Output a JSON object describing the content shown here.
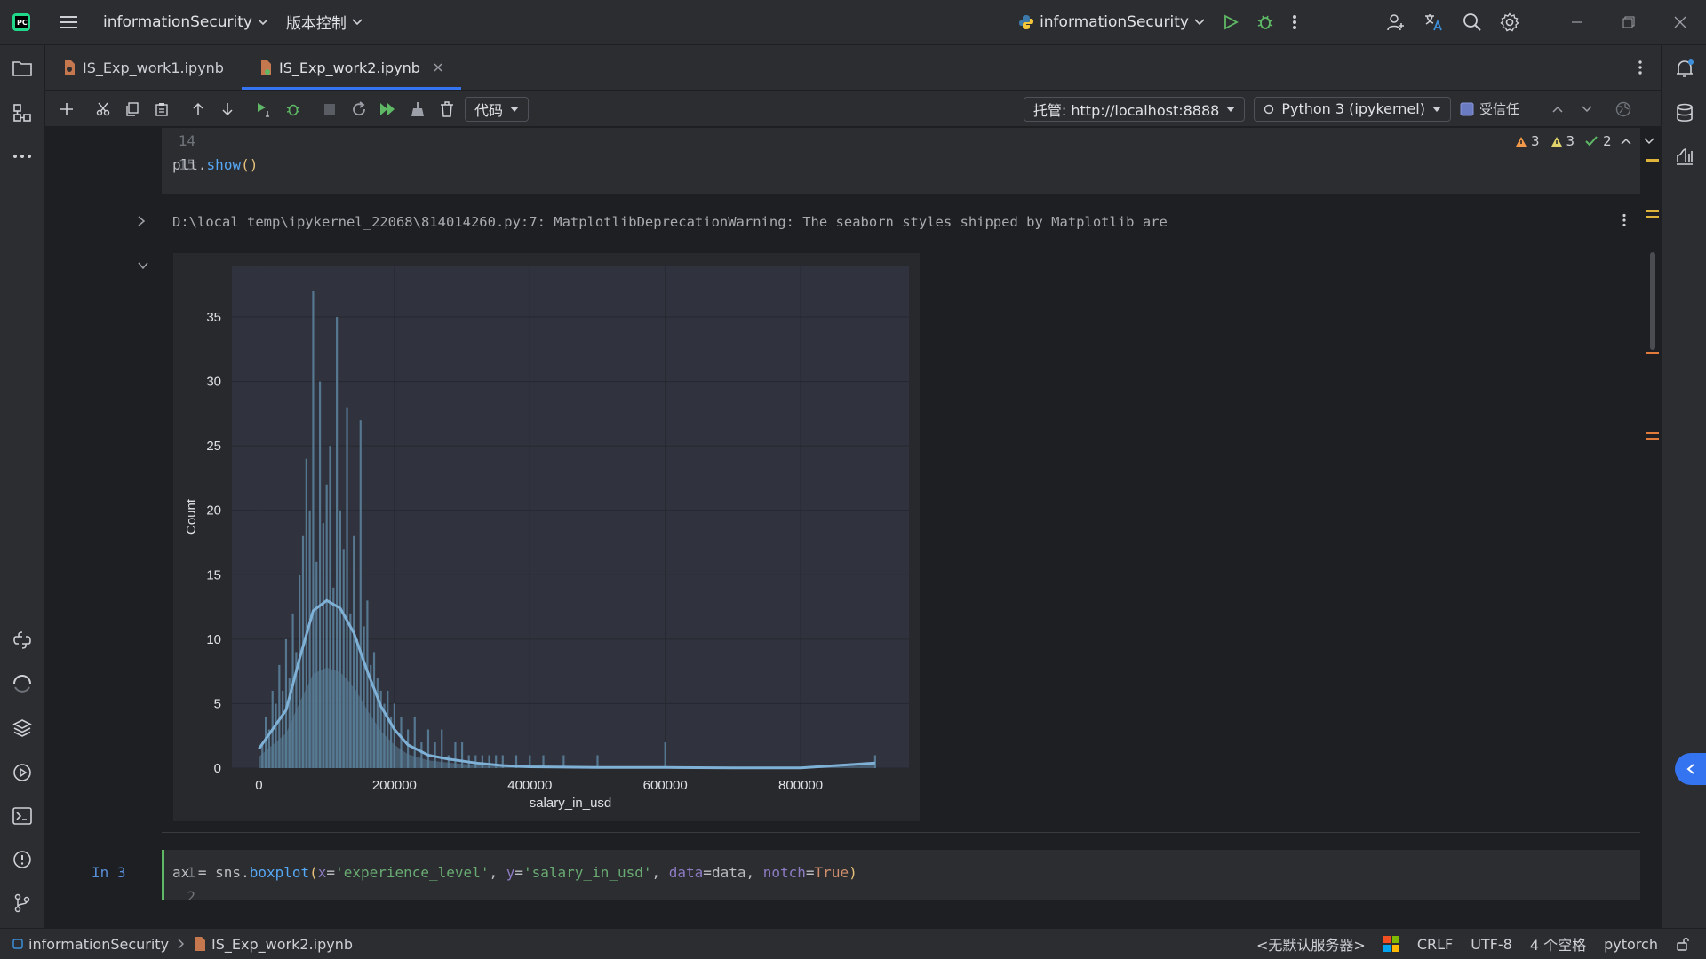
{
  "titlebar": {
    "project_name": "informationSecurity",
    "vcs_label": "版本控制",
    "run_config": "informationSecurity"
  },
  "tabs": [
    {
      "label": "IS_Exp_work1.ipynb"
    },
    {
      "label": "IS_Exp_work2.ipynb"
    }
  ],
  "toolbar": {
    "cell_type": "代码",
    "server": "托管: http://localhost:8888",
    "kernel": "Python 3 (ipykernel)",
    "trusted_label": "受信任"
  },
  "inspections": {
    "warnings": "3",
    "weak_warnings": "3",
    "ok": "2"
  },
  "editor": {
    "prev_cell_lines": [
      {
        "num": "14",
        "code": ""
      },
      {
        "num": "15",
        "code_obj": "plt",
        "code_dot": ".",
        "code_fn": "show",
        "code_paren": "()"
      }
    ],
    "output_warning": "D:\\local temp\\ipykernel_22068\\814014260.py:7: MatplotlibDeprecationWarning: The seaborn styles shipped by Matplotlib are",
    "next_cell_prompt": "In 3",
    "next_cell_lines": [
      {
        "num": "1"
      },
      {
        "num": "2"
      }
    ],
    "next_cell_code": {
      "p1": "ax = sns.",
      "fn": "boxplot",
      "p2": "(",
      "k1": "x",
      "e1": "=",
      "s1": "'experience_level'",
      "c1": ", ",
      "k2": "y",
      "e2": "=",
      "s2": "'salary_in_usd'",
      "c2": ", ",
      "k3": "data",
      "e3": "=",
      "v3": "data",
      "c3": ", ",
      "k4": "notch",
      "e4": "=",
      "v4": "True",
      "p3": ")"
    }
  },
  "chart_data": {
    "type": "histogram",
    "title": "",
    "xlabel": "salary_in_usd",
    "ylabel": "Count",
    "xlim": [
      -40000,
      960000
    ],
    "ylim": [
      0,
      39
    ],
    "xticks": [
      0,
      200000,
      400000,
      600000,
      800000
    ],
    "xtick_labels": [
      "0",
      "200000",
      "400000",
      "600000",
      "800000"
    ],
    "yticks": [
      0,
      5,
      10,
      15,
      20,
      25,
      30,
      35
    ],
    "ytick_labels": [
      "0",
      "5",
      "10",
      "15",
      "20",
      "25",
      "30",
      "35"
    ],
    "grid": true,
    "bar_color": "#5a7e98",
    "kde_color": "#7fb1d6",
    "bins_x": [
      5000,
      10000,
      15000,
      20000,
      25000,
      30000,
      35000,
      40000,
      45000,
      50000,
      55000,
      60000,
      65000,
      70000,
      75000,
      80000,
      85000,
      90000,
      95000,
      100000,
      105000,
      110000,
      115000,
      120000,
      125000,
      130000,
      135000,
      140000,
      145000,
      150000,
      155000,
      160000,
      165000,
      170000,
      175000,
      180000,
      185000,
      190000,
      195000,
      200000,
      210000,
      220000,
      230000,
      240000,
      250000,
      260000,
      270000,
      280000,
      290000,
      300000,
      310000,
      320000,
      330000,
      340000,
      350000,
      360000,
      380000,
      400000,
      420000,
      450000,
      500000,
      600000,
      910000
    ],
    "bin_counts": [
      2,
      4,
      3,
      6,
      5,
      8,
      6,
      10,
      7,
      12,
      9,
      15,
      18,
      24,
      20,
      37,
      16,
      30,
      19,
      22,
      25,
      14,
      35,
      20,
      17,
      28,
      12,
      18,
      10,
      27,
      11,
      13,
      8,
      9,
      7,
      6,
      5,
      6,
      4,
      5,
      4,
      3,
      4,
      2,
      3,
      2,
      3,
      1,
      2,
      2,
      1,
      1,
      1,
      1,
      1,
      1,
      1,
      1,
      1,
      1,
      1,
      2,
      1
    ],
    "kde_x": [
      0,
      40000,
      60000,
      80000,
      100000,
      120000,
      140000,
      160000,
      180000,
      200000,
      220000,
      250000,
      280000,
      320000,
      360000,
      400000,
      500000,
      600000,
      700000,
      800000,
      910000
    ],
    "kde_y": [
      1.5,
      4.5,
      8.5,
      12.2,
      13.0,
      12.4,
      10.5,
      7.5,
      4.8,
      3.0,
      1.8,
      1.0,
      0.7,
      0.4,
      0.2,
      0.1,
      0.05,
      0.05,
      0.02,
      0.02,
      0.4
    ]
  }
}
